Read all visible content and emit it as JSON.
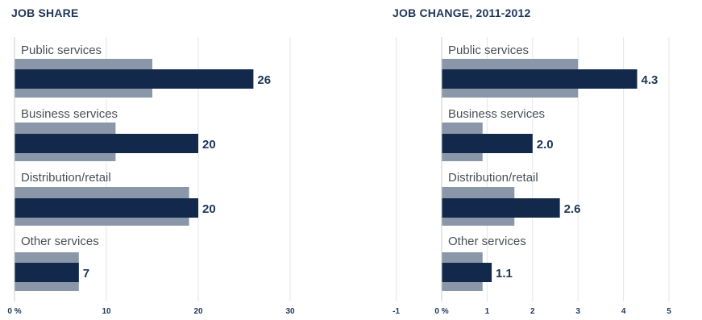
{
  "chart_data": [
    {
      "type": "bar",
      "orientation": "horizontal",
      "title": "JOB SHARE",
      "categories": [
        "Public services",
        "Business services",
        "Distribution/retail",
        "Other services"
      ],
      "series": [
        {
          "values": [
            15,
            11,
            19,
            7
          ],
          "color": "#8a97a8"
        },
        {
          "values": [
            26,
            20,
            20,
            7
          ],
          "color": "#13294b"
        }
      ],
      "value_labels": [
        "26",
        "20",
        "20",
        "7"
      ],
      "xlim": [
        0,
        40
      ],
      "xticks": [
        0,
        10,
        20,
        30
      ],
      "xtick_labels": [
        "0 %",
        "10",
        "20",
        "30"
      ],
      "grid": true
    },
    {
      "type": "bar",
      "orientation": "horizontal",
      "title": "JOB CHANGE, 2011-2012",
      "categories": [
        "Public services",
        "Business services",
        "Distribution/retail",
        "Other services"
      ],
      "series": [
        {
          "values": [
            3.0,
            0.9,
            1.6,
            0.9
          ],
          "color": "#8a97a8"
        },
        {
          "values": [
            4.3,
            2.0,
            2.6,
            1.1
          ],
          "color": "#13294b"
        }
      ],
      "value_labels": [
        "4.3",
        "2.0",
        "2.6",
        "1.1"
      ],
      "xlim": [
        -1,
        5.5
      ],
      "xticks": [
        -1,
        0,
        1,
        2,
        3,
        4,
        5
      ],
      "xtick_labels": [
        "-1",
        "0 %",
        "1",
        "2",
        "3",
        "4",
        "5"
      ],
      "grid": true
    }
  ]
}
